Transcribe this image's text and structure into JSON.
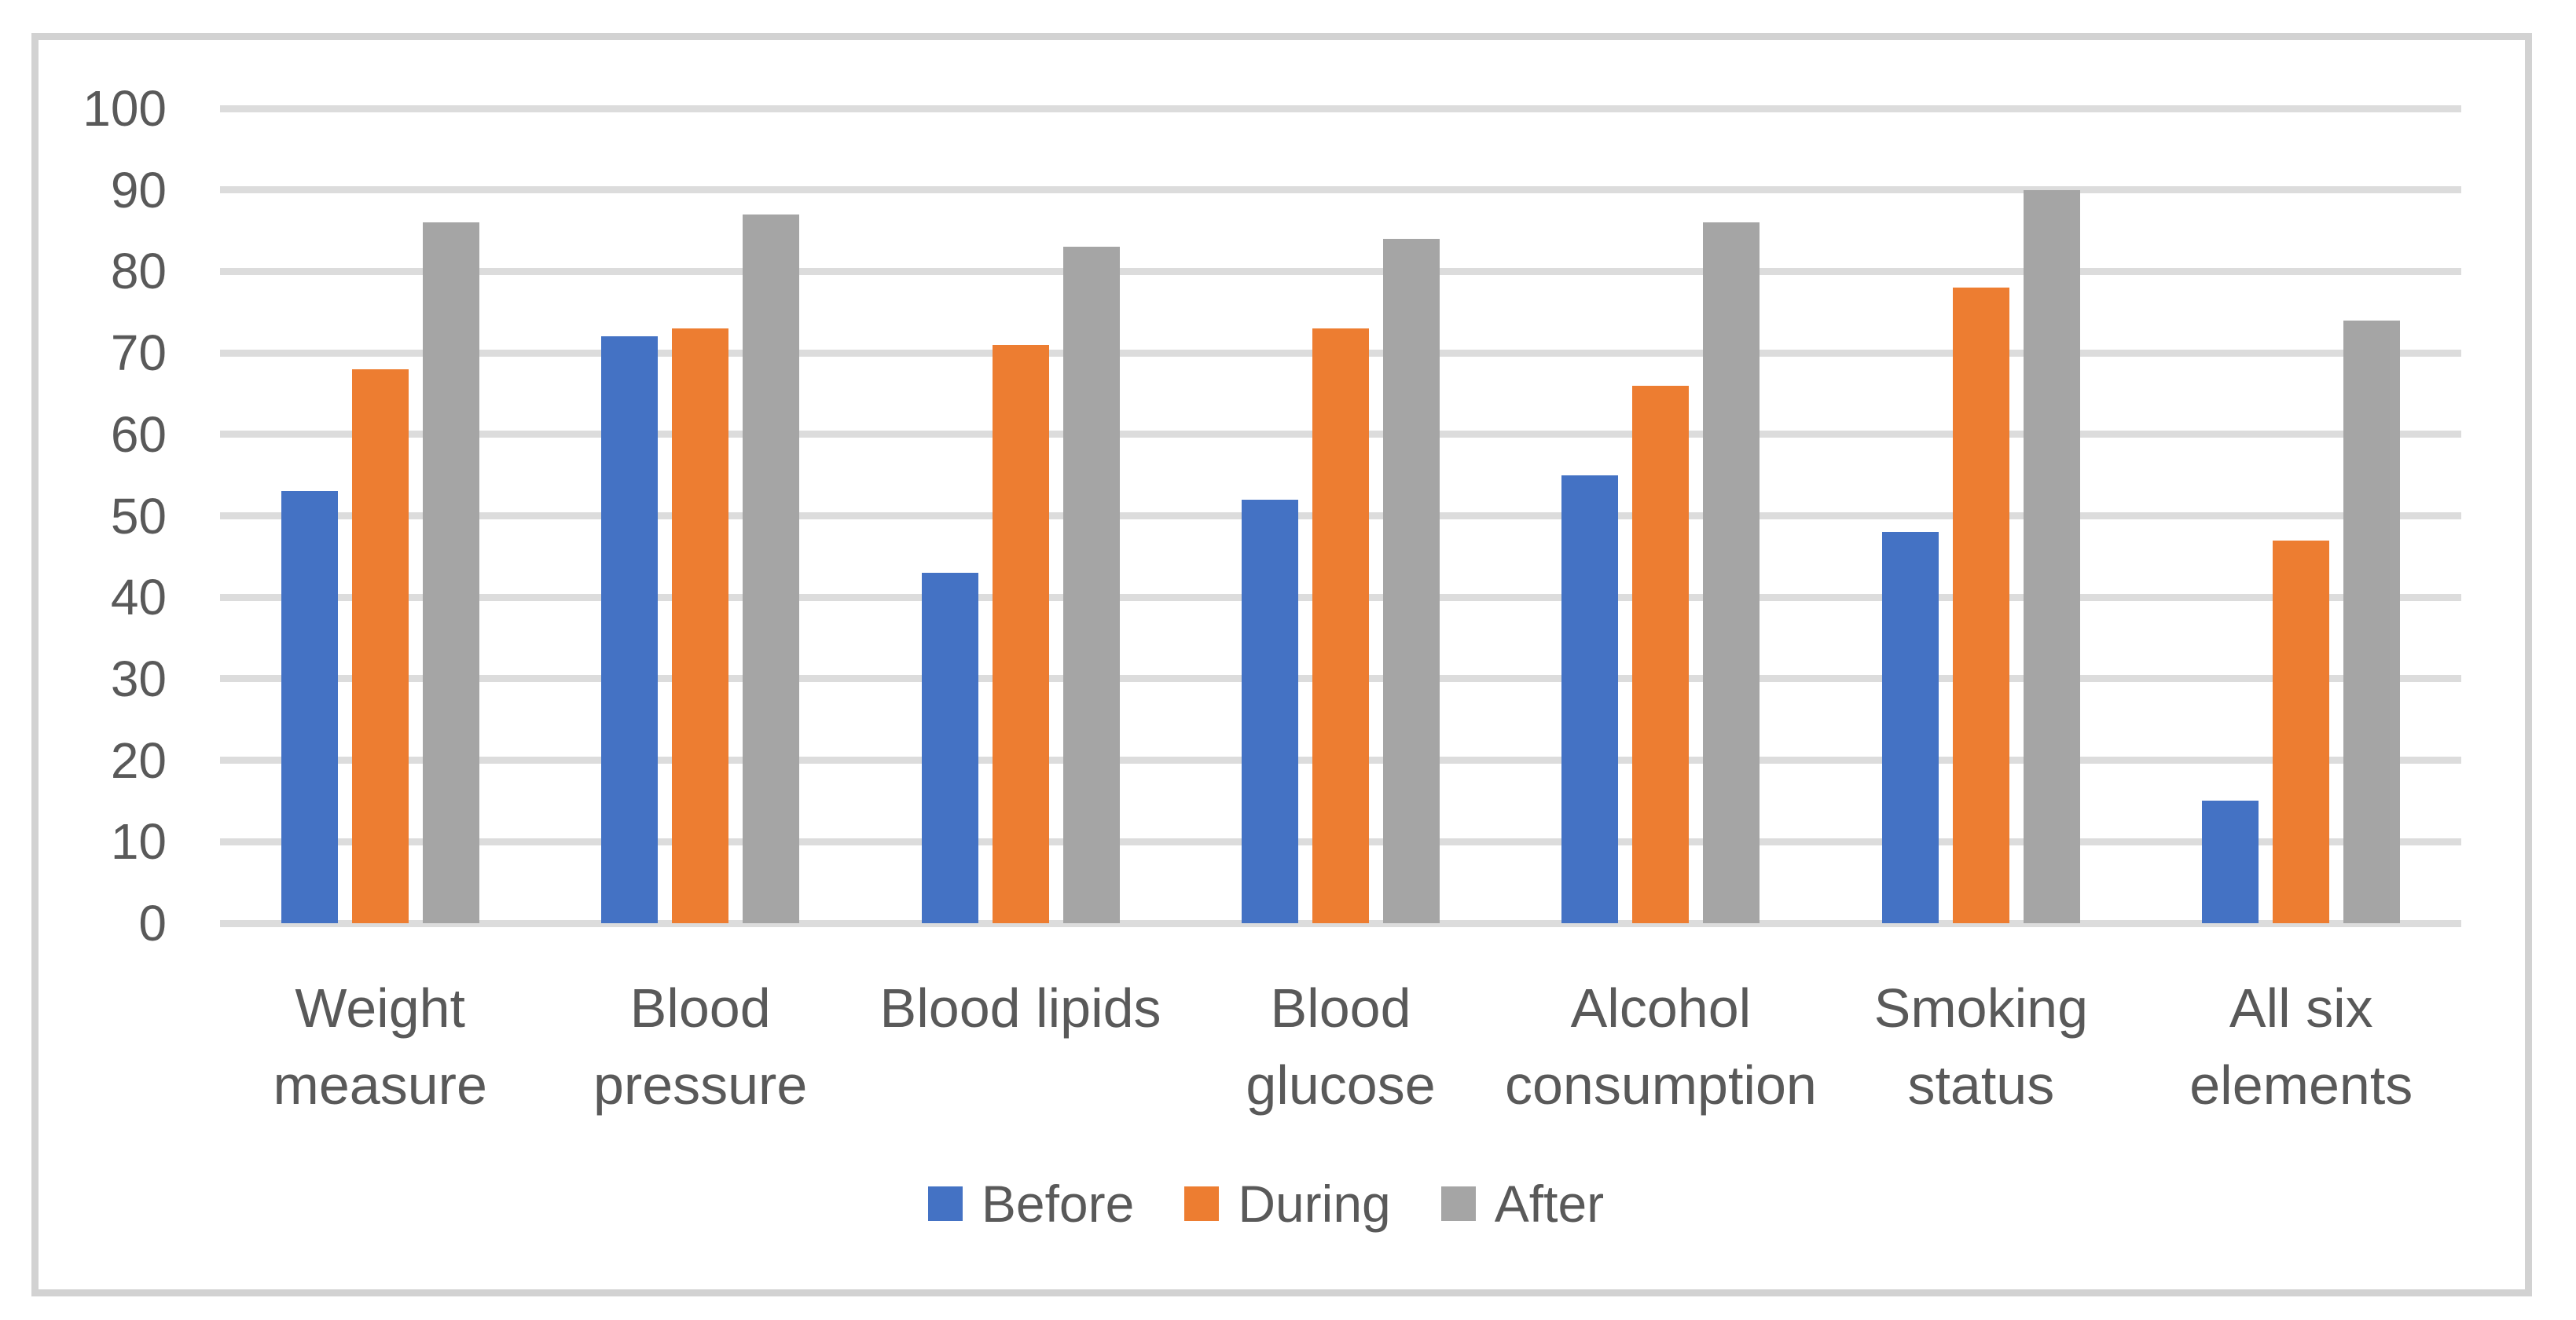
{
  "figure": {
    "background_color": "#FFFFFF",
    "border_color": "#D2D2D2"
  },
  "chart_data": {
    "type": "bar",
    "title": "",
    "xlabel": "",
    "ylabel": "",
    "categories": [
      "Weight measure",
      "Blood pressure",
      "Blood lipids",
      "Blood glucose",
      "Alcohol consumption",
      "Smoking status",
      "All six elements"
    ],
    "category_lines": [
      [
        "Weight",
        "measure"
      ],
      [
        "Blood",
        "pressure"
      ],
      [
        "Blood lipids"
      ],
      [
        "Blood",
        "glucose"
      ],
      [
        "Alcohol",
        "consumption"
      ],
      [
        "Smoking",
        "status"
      ],
      [
        "All six",
        "elements"
      ]
    ],
    "series": [
      {
        "name": "Before",
        "color": "#4472C4",
        "values": [
          53,
          72,
          43,
          52,
          55,
          48,
          15
        ]
      },
      {
        "name": "During",
        "color": "#ED7D31",
        "values": [
          68,
          73,
          71,
          73,
          66,
          78,
          47
        ]
      },
      {
        "name": "After",
        "color": "#A5A5A5",
        "values": [
          86,
          87,
          83,
          84,
          86,
          90,
          74
        ]
      }
    ],
    "ylim": [
      0,
      100
    ],
    "yticks": [
      0,
      10,
      20,
      30,
      40,
      50,
      60,
      70,
      80,
      90,
      100
    ],
    "grid": "horizontal",
    "gridline_color": "#DCDCDC",
    "axis_text_color": "#595959",
    "legend_position": "bottom"
  }
}
